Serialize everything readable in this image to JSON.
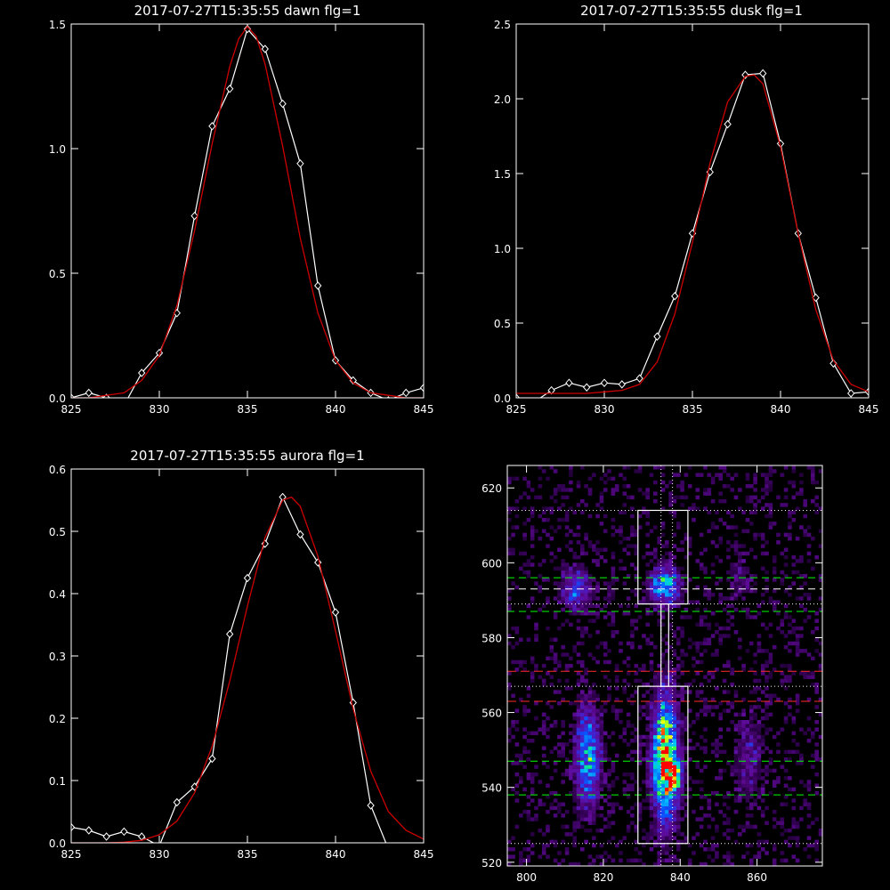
{
  "colors": {
    "background": "#000000",
    "axes": "#ffffff",
    "data_line": "#ffffff",
    "fit_line": "#cc0000",
    "green_dash": "#00ff00",
    "red_dash": "#ff2a2a"
  },
  "chart_data": [
    {
      "type": "line",
      "title": "2017-07-27T15:35:55 dawn flg=1",
      "xlim": [
        825,
        845
      ],
      "ylim": [
        0,
        1.5
      ],
      "xticks": [
        "825",
        "830",
        "835",
        "840",
        "845"
      ],
      "xtick_values": [
        825,
        830,
        835,
        840,
        845
      ],
      "yticks": [
        "0.0",
        "0.5",
        "1.0",
        "1.5"
      ],
      "ytick_values": [
        0,
        0.5,
        1.0,
        1.5
      ],
      "series": [
        {
          "kind": "data",
          "marker": "diamond",
          "x": [
            825,
            826,
            827,
            828,
            829,
            830,
            831,
            832,
            833,
            834,
            835,
            836,
            837,
            838,
            839,
            840,
            841,
            842,
            843,
            844,
            845
          ],
          "y": [
            0.0,
            0.02,
            0.0,
            -0.03,
            0.1,
            0.18,
            0.34,
            0.73,
            1.09,
            1.24,
            1.48,
            1.4,
            1.18,
            0.94,
            0.45,
            0.15,
            0.07,
            0.02,
            -0.01,
            0.02,
            0.04
          ]
        },
        {
          "kind": "fit",
          "x": [
            825,
            826,
            827,
            828,
            829,
            830,
            831,
            832,
            833,
            834,
            834.5,
            835,
            835.5,
            836,
            837,
            838,
            839,
            840,
            841,
            842,
            843,
            844,
            845
          ],
          "y": [
            0.0,
            0.0,
            0.01,
            0.02,
            0.07,
            0.17,
            0.37,
            0.67,
            1.02,
            1.33,
            1.44,
            1.49,
            1.45,
            1.34,
            1.01,
            0.64,
            0.34,
            0.15,
            0.06,
            0.02,
            0.01,
            0.0,
            0.0
          ]
        }
      ]
    },
    {
      "type": "line",
      "title": "2017-07-27T15:35:55 dusk flg=1",
      "xlim": [
        825,
        845
      ],
      "ylim": [
        0,
        2.5
      ],
      "xticks": [
        "825",
        "830",
        "835",
        "840",
        "845"
      ],
      "xtick_values": [
        825,
        830,
        835,
        840,
        845
      ],
      "yticks": [
        "0.0",
        "0.5",
        "1.0",
        "1.5",
        "2.0",
        "2.5"
      ],
      "ytick_values": [
        0,
        0.5,
        1.0,
        1.5,
        2.0,
        2.5
      ],
      "series": [
        {
          "kind": "data",
          "marker": "diamond",
          "x": [
            825,
            826,
            827,
            828,
            829,
            830,
            831,
            832,
            833,
            834,
            835,
            836,
            837,
            838,
            839,
            840,
            841,
            842,
            843,
            844,
            845
          ],
          "y": [
            0.0,
            -0.03,
            0.05,
            0.1,
            0.07,
            0.1,
            0.09,
            0.13,
            0.41,
            0.68,
            1.1,
            1.51,
            1.83,
            2.16,
            2.17,
            1.7,
            1.1,
            0.67,
            0.23,
            0.03,
            0.04
          ]
        },
        {
          "kind": "fit",
          "x": [
            825,
            826,
            827,
            828,
            829,
            830,
            831,
            832,
            833,
            834,
            835,
            836,
            837,
            838,
            838.5,
            839,
            840,
            841,
            842,
            843,
            844,
            845
          ],
          "y": [
            0.03,
            0.03,
            0.03,
            0.03,
            0.03,
            0.04,
            0.05,
            0.09,
            0.24,
            0.56,
            1.04,
            1.57,
            1.98,
            2.15,
            2.16,
            2.1,
            1.68,
            1.1,
            0.59,
            0.25,
            0.09,
            0.04
          ]
        }
      ]
    },
    {
      "type": "line",
      "title": "2017-07-27T15:35:55 aurora flg=1",
      "xlim": [
        825,
        845
      ],
      "ylim": [
        0,
        0.6
      ],
      "xticks": [
        "825",
        "830",
        "835",
        "840",
        "845"
      ],
      "xtick_values": [
        825,
        830,
        835,
        840,
        845
      ],
      "yticks": [
        "0.0",
        "0.1",
        "0.2",
        "0.3",
        "0.4",
        "0.5",
        "0.6"
      ],
      "ytick_values": [
        0,
        0.1,
        0.2,
        0.3,
        0.4,
        0.5,
        0.6
      ],
      "series": [
        {
          "kind": "data",
          "marker": "diamond",
          "x": [
            825,
            826,
            827,
            828,
            829,
            830,
            831,
            832,
            833,
            834,
            835,
            836,
            837,
            838,
            839,
            840,
            841,
            842,
            843,
            844
          ],
          "y": [
            0.025,
            0.02,
            0.01,
            0.018,
            0.01,
            -0.005,
            0.065,
            0.09,
            0.135,
            0.335,
            0.425,
            0.48,
            0.555,
            0.495,
            0.45,
            0.37,
            0.225,
            0.06,
            -0.01,
            -0.02
          ]
        },
        {
          "kind": "fit",
          "x": [
            825,
            826,
            827,
            828,
            829,
            830,
            831,
            832,
            833,
            834,
            835,
            836,
            837,
            837.5,
            838,
            839,
            840,
            841,
            842,
            843,
            844,
            845
          ],
          "y": [
            0.0,
            0.0,
            0.0,
            0.001,
            0.004,
            0.013,
            0.035,
            0.08,
            0.155,
            0.26,
            0.38,
            0.49,
            0.55,
            0.555,
            0.54,
            0.46,
            0.34,
            0.215,
            0.115,
            0.05,
            0.02,
            0.006
          ]
        }
      ]
    },
    {
      "type": "heatmap",
      "xlim": [
        795,
        877
      ],
      "ylim": [
        519,
        626
      ],
      "xticks": [
        "800",
        "820",
        "840",
        "860"
      ],
      "xtick_values": [
        800,
        820,
        840,
        860
      ],
      "yticks": [
        "520",
        "540",
        "560",
        "580",
        "600",
        "620"
      ],
      "ytick_values": [
        520,
        540,
        560,
        580,
        600,
        620
      ],
      "blobs": [
        {
          "cx": 836,
          "cy": 548,
          "sx": 2.2,
          "sy": 11,
          "amp": 0.9
        },
        {
          "cx": 838.5,
          "cy": 543,
          "sx": 1.5,
          "sy": 3,
          "amp": 0.5
        },
        {
          "cx": 816,
          "cy": 548,
          "sx": 2.2,
          "sy": 9,
          "amp": 0.5
        },
        {
          "cx": 836,
          "cy": 594,
          "sx": 2.5,
          "sy": 3.5,
          "amp": 0.55
        },
        {
          "cx": 813,
          "cy": 593,
          "sx": 2.5,
          "sy": 3.5,
          "amp": 0.38
        },
        {
          "cx": 858,
          "cy": 548,
          "sx": 2.5,
          "sy": 8,
          "amp": 0.18
        },
        {
          "cx": 856,
          "cy": 595,
          "sx": 2.5,
          "sy": 4,
          "amp": 0.12
        }
      ],
      "boxes": [
        {
          "x": [
            829,
            842
          ],
          "y": [
            589,
            614
          ]
        },
        {
          "x": [
            829,
            842
          ],
          "y": [
            525,
            567
          ]
        },
        {
          "x": [
            835,
            837
          ],
          "y": [
            567,
            589
          ]
        }
      ],
      "vertical_dotted": [
        835,
        838
      ],
      "horizontal_dotted": [
        614,
        589,
        567,
        525
      ],
      "green_dashed": [
        596,
        587,
        547,
        538
      ],
      "white_dashed": [
        593
      ],
      "red_dashed": [
        571,
        563
      ]
    }
  ]
}
